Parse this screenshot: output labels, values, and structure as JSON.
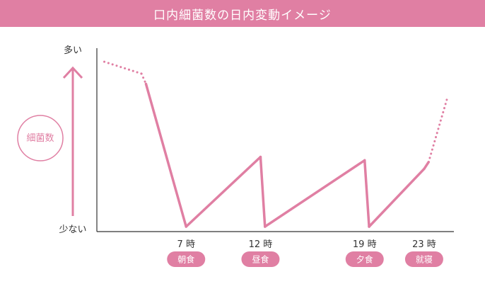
{
  "title": "口内細菌数の日内変動イメージ",
  "y_axis": {
    "top_label": "多い",
    "bottom_label": "少ない",
    "quantity_label": "細菌数"
  },
  "colors": {
    "accent": "#e07fa3",
    "axis": "#333333",
    "text": "#333333"
  },
  "chart_data": {
    "type": "line",
    "title": "口内細菌数の日内変動イメージ",
    "x_unit": "時",
    "y_scale": "relative (少ない → 多い)",
    "xlim": [
      1,
      25
    ],
    "ylim": [
      0,
      1
    ],
    "events": [
      {
        "hour": 7,
        "time_label": "7 時",
        "meal": "朝食"
      },
      {
        "hour": 12,
        "time_label": "12 時",
        "meal": "昼食"
      },
      {
        "hour": 19,
        "time_label": "19 時",
        "meal": "夕食"
      },
      {
        "hour": 23,
        "time_label": "23 時",
        "meal": "就寝"
      }
    ],
    "series": [
      {
        "points": [
          {
            "x": 1.5,
            "y": 0.97,
            "style": "dotted"
          },
          {
            "x": 4.0,
            "y": 0.9,
            "style": "dotted"
          },
          {
            "x": 4.3,
            "y": 0.84,
            "style": "solid"
          },
          {
            "x": 7.0,
            "y": 0.0,
            "style": "solid"
          },
          {
            "x": 12.0,
            "y": 0.41,
            "style": "solid"
          },
          {
            "x": 12.3,
            "y": 0.0,
            "style": "solid"
          },
          {
            "x": 19.0,
            "y": 0.39,
            "style": "solid"
          },
          {
            "x": 19.3,
            "y": 0.0,
            "style": "solid"
          },
          {
            "x": 23.0,
            "y": 0.34,
            "style": "solid"
          },
          {
            "x": 23.3,
            "y": 0.38,
            "style": "dotted"
          },
          {
            "x": 24.6,
            "y": 0.77,
            "style": "dotted"
          }
        ]
      }
    ]
  }
}
